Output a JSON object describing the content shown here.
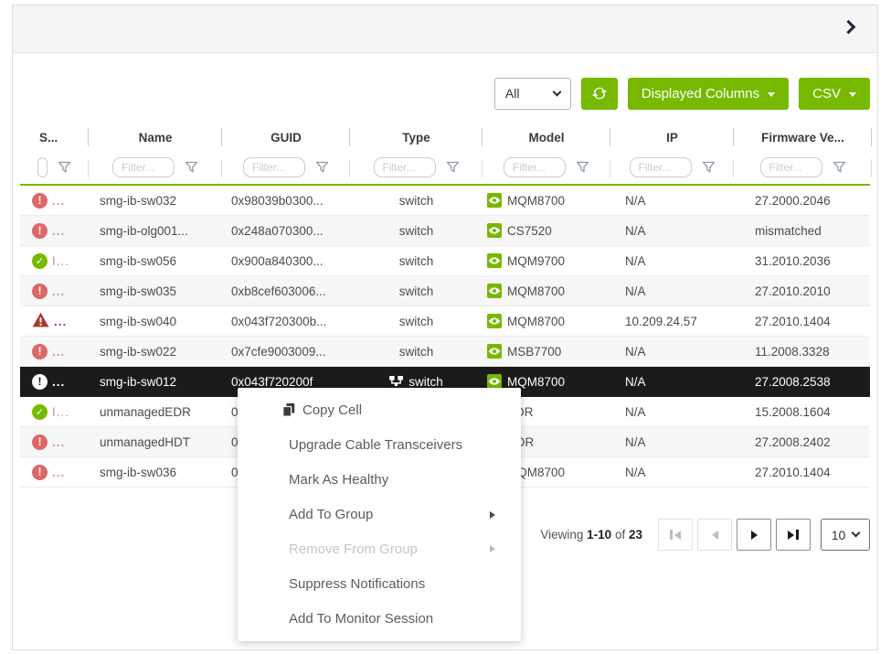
{
  "panel": {
    "collapse_icon": "chevron-right"
  },
  "toolbar": {
    "filter_select": {
      "value": "All"
    },
    "refresh_icon": "refresh",
    "displayed_columns_label": "Displayed Columns",
    "csv_label": "CSV"
  },
  "table": {
    "columns": [
      {
        "key": "severity",
        "label": "S..."
      },
      {
        "key": "name",
        "label": "Name"
      },
      {
        "key": "guid",
        "label": "GUID"
      },
      {
        "key": "type",
        "label": "Type"
      },
      {
        "key": "model",
        "label": "Model"
      },
      {
        "key": "ip",
        "label": "IP"
      },
      {
        "key": "firmware",
        "label": "Firmware Ve..."
      }
    ],
    "filter_placeholder": "Filter...",
    "rows": [
      {
        "severity": "error",
        "severity_label": "...",
        "name": "smg-ib-sw032",
        "guid": "0x98039b0300...",
        "type": "switch",
        "has_type_icon": false,
        "model": "MQM8700",
        "has_model_icon": true,
        "ip": "N/A",
        "firmware": "27.2000.2046",
        "selected": false,
        "shaded": false
      },
      {
        "severity": "error",
        "severity_label": "...",
        "name": "smg-ib-olg001...",
        "guid": "0x248a070300...",
        "type": "switch",
        "has_type_icon": false,
        "model": "CS7520",
        "has_model_icon": true,
        "ip": "N/A",
        "firmware": "mismatched",
        "selected": false,
        "shaded": true
      },
      {
        "severity": "ok",
        "severity_label": "I...",
        "name": "smg-ib-sw056",
        "guid": "0x900a840300...",
        "type": "switch",
        "has_type_icon": false,
        "model": "MQM9700",
        "has_model_icon": true,
        "ip": "N/A",
        "firmware": "31.2010.2036",
        "selected": false,
        "shaded": false
      },
      {
        "severity": "error",
        "severity_label": "...",
        "name": "smg-ib-sw035",
        "guid": "0xb8cef603006...",
        "type": "switch",
        "has_type_icon": false,
        "model": "MQM8700",
        "has_model_icon": true,
        "ip": "N/A",
        "firmware": "27.2010.2010",
        "selected": false,
        "shaded": true
      },
      {
        "severity": "warning",
        "severity_label": "...",
        "name": "smg-ib-sw040",
        "guid": "0x043f720300b...",
        "type": "switch",
        "has_type_icon": false,
        "model": "MQM8700",
        "has_model_icon": true,
        "ip": "10.209.24.57",
        "firmware": "27.2010.1404",
        "selected": false,
        "shaded": false
      },
      {
        "severity": "error",
        "severity_label": "...",
        "name": "smg-ib-sw022",
        "guid": "0x7cfe9003009...",
        "type": "switch",
        "has_type_icon": false,
        "model": "MSB7700",
        "has_model_icon": true,
        "ip": "N/A",
        "firmware": "11.2008.3328",
        "selected": false,
        "shaded": true
      },
      {
        "severity": "error",
        "severity_label": "...",
        "name": "smg-ib-sw012",
        "guid": "0x043f720200f",
        "type": "switch",
        "has_type_icon": true,
        "model": "MQM8700",
        "has_model_icon": true,
        "ip": "N/A",
        "firmware": "27.2008.2538",
        "selected": true,
        "shaded": false
      },
      {
        "severity": "ok",
        "severity_label": "I...",
        "name": "unmanagedEDR",
        "guid": "0",
        "type": "",
        "has_type_icon": false,
        "model": "EDR",
        "has_model_icon": true,
        "ip": "N/A",
        "firmware": "15.2008.1604",
        "selected": false,
        "shaded": false
      },
      {
        "severity": "error",
        "severity_label": "...",
        "name": "unmanagedHDT",
        "guid": "0",
        "type": "",
        "has_type_icon": false,
        "model": "HDR",
        "has_model_icon": true,
        "ip": "N/A",
        "firmware": "27.2008.2402",
        "selected": false,
        "shaded": true
      },
      {
        "severity": "error",
        "severity_label": "...",
        "name": "smg-ib-sw036",
        "guid": "0",
        "type": "",
        "has_type_icon": false,
        "model": "MQM8700",
        "has_model_icon": true,
        "ip": "N/A",
        "firmware": "27.2010.1404",
        "selected": false,
        "shaded": false
      }
    ]
  },
  "context_menu": {
    "items": [
      {
        "label": "Copy Cell",
        "icon": "copy-icon",
        "disabled": false,
        "has_submenu": false
      },
      {
        "label": "Upgrade Cable Transceivers",
        "icon": "",
        "disabled": false,
        "has_submenu": false
      },
      {
        "label": "Mark As Healthy",
        "icon": "",
        "disabled": false,
        "has_submenu": false
      },
      {
        "label": "Add To Group",
        "icon": "",
        "disabled": false,
        "has_submenu": true
      },
      {
        "label": "Remove From Group",
        "icon": "",
        "disabled": true,
        "has_submenu": true
      },
      {
        "label": "Suppress Notifications",
        "icon": "",
        "disabled": false,
        "has_submenu": false
      },
      {
        "label": "Add To Monitor Session",
        "icon": "",
        "disabled": false,
        "has_submenu": false
      }
    ]
  },
  "pagination": {
    "viewing_label": "Viewing",
    "range": "1-10",
    "of_label": "of",
    "total": "23",
    "page_size": "10"
  },
  "colors": {
    "accent_green": "#76b900",
    "error_red": "#db6767",
    "warning_red": "#a8392e",
    "selected_row_bg": "#1b1b1b"
  }
}
